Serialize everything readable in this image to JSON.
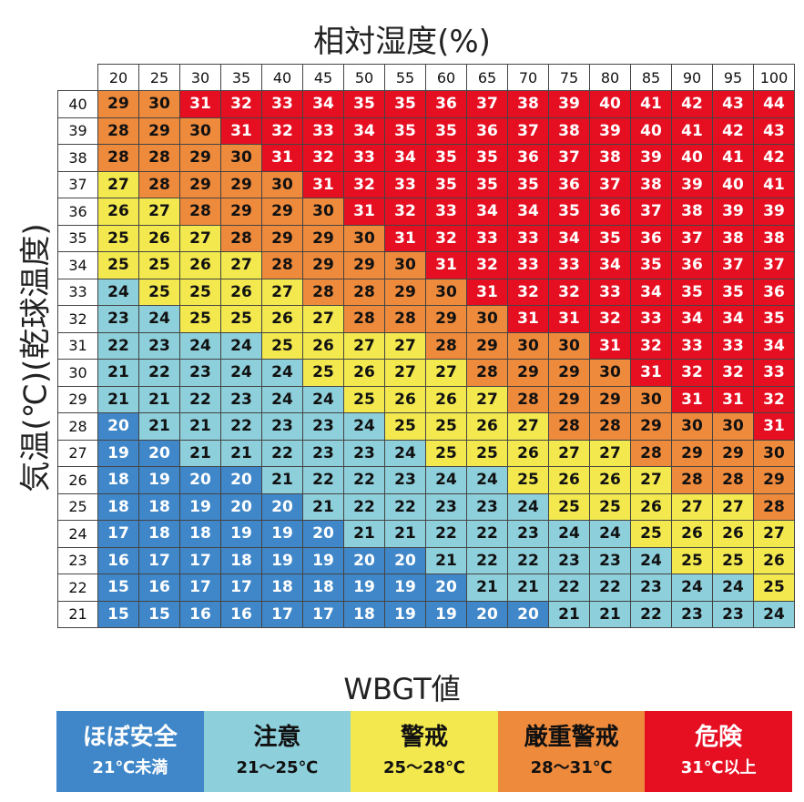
{
  "page": {
    "top_title": "相対湿度(%)",
    "side_title": "気温(℃)(乾球温度)",
    "legend_title": "WBGT値"
  },
  "legend": [
    {
      "label": "ほぼ安全",
      "range": "21℃未満",
      "color": "#3f87c9",
      "text_color": "#ffffff"
    },
    {
      "label": "注意",
      "range": "21～25℃",
      "color": "#8dcfdb",
      "text_color": "#111111"
    },
    {
      "label": "警戒",
      "range": "25～28℃",
      "color": "#f3e94e",
      "text_color": "#111111"
    },
    {
      "label": "厳重警戒",
      "range": "28～31℃",
      "color": "#ee8a3c",
      "text_color": "#111111"
    },
    {
      "label": "危険",
      "range": "31℃以上",
      "color": "#e60f22",
      "text_color": "#ffffff"
    }
  ],
  "chart_data": {
    "type": "heatmap",
    "title": "相対湿度(%)",
    "xlabel": "相対湿度(%)",
    "ylabel": "気温(℃)(乾球温度)",
    "value_label": "WBGT値",
    "x": [
      20,
      25,
      30,
      35,
      40,
      45,
      50,
      55,
      60,
      65,
      70,
      75,
      80,
      85,
      90,
      95,
      100
    ],
    "y": [
      40,
      39,
      38,
      37,
      36,
      35,
      34,
      33,
      32,
      31,
      30,
      29,
      28,
      27,
      26,
      25,
      24,
      23,
      22,
      21
    ],
    "values": [
      [
        29,
        30,
        31,
        32,
        33,
        34,
        35,
        35,
        36,
        37,
        38,
        39,
        40,
        41,
        42,
        43,
        44
      ],
      [
        28,
        29,
        30,
        31,
        32,
        33,
        34,
        35,
        35,
        36,
        37,
        38,
        39,
        40,
        41,
        42,
        43
      ],
      [
        28,
        28,
        29,
        30,
        31,
        32,
        33,
        34,
        35,
        35,
        36,
        37,
        38,
        39,
        40,
        41,
        42
      ],
      [
        27,
        28,
        29,
        29,
        30,
        31,
        32,
        33,
        35,
        35,
        35,
        36,
        37,
        38,
        39,
        40,
        41
      ],
      [
        26,
        27,
        28,
        29,
        29,
        30,
        31,
        32,
        33,
        34,
        34,
        35,
        36,
        37,
        38,
        39,
        39
      ],
      [
        25,
        26,
        27,
        28,
        29,
        29,
        30,
        31,
        32,
        33,
        33,
        34,
        35,
        36,
        37,
        38,
        38
      ],
      [
        25,
        25,
        26,
        27,
        28,
        29,
        29,
        30,
        31,
        32,
        33,
        33,
        34,
        35,
        36,
        37,
        37
      ],
      [
        24,
        25,
        25,
        26,
        27,
        28,
        28,
        29,
        30,
        31,
        32,
        32,
        33,
        34,
        35,
        35,
        36
      ],
      [
        23,
        24,
        25,
        25,
        26,
        27,
        28,
        28,
        29,
        30,
        31,
        31,
        32,
        33,
        34,
        34,
        35
      ],
      [
        22,
        23,
        24,
        24,
        25,
        26,
        27,
        27,
        28,
        29,
        30,
        30,
        31,
        32,
        33,
        33,
        34
      ],
      [
        21,
        22,
        23,
        24,
        24,
        25,
        26,
        27,
        27,
        28,
        29,
        29,
        30,
        31,
        32,
        32,
        33
      ],
      [
        21,
        21,
        22,
        23,
        24,
        24,
        25,
        26,
        26,
        27,
        28,
        29,
        29,
        30,
        31,
        31,
        32
      ],
      [
        20,
        21,
        21,
        22,
        23,
        23,
        24,
        25,
        25,
        26,
        27,
        28,
        28,
        29,
        30,
        30,
        31
      ],
      [
        19,
        20,
        21,
        21,
        22,
        23,
        23,
        24,
        25,
        25,
        26,
        27,
        27,
        28,
        29,
        29,
        30
      ],
      [
        18,
        19,
        20,
        20,
        21,
        22,
        22,
        23,
        24,
        24,
        25,
        26,
        26,
        27,
        28,
        28,
        29
      ],
      [
        18,
        18,
        19,
        20,
        20,
        21,
        22,
        22,
        23,
        23,
        24,
        25,
        25,
        26,
        27,
        27,
        28
      ],
      [
        17,
        18,
        18,
        19,
        19,
        20,
        21,
        21,
        22,
        22,
        23,
        24,
        24,
        25,
        26,
        26,
        27
      ],
      [
        16,
        17,
        17,
        18,
        19,
        19,
        20,
        20,
        21,
        22,
        22,
        23,
        23,
        24,
        25,
        25,
        26
      ],
      [
        15,
        16,
        17,
        17,
        18,
        18,
        19,
        19,
        20,
        21,
        21,
        22,
        22,
        23,
        24,
        24,
        25
      ],
      [
        15,
        15,
        16,
        16,
        17,
        17,
        18,
        19,
        19,
        20,
        20,
        21,
        21,
        22,
        23,
        23,
        24
      ]
    ],
    "thresholds": [
      21,
      25,
      28,
      31
    ]
  }
}
